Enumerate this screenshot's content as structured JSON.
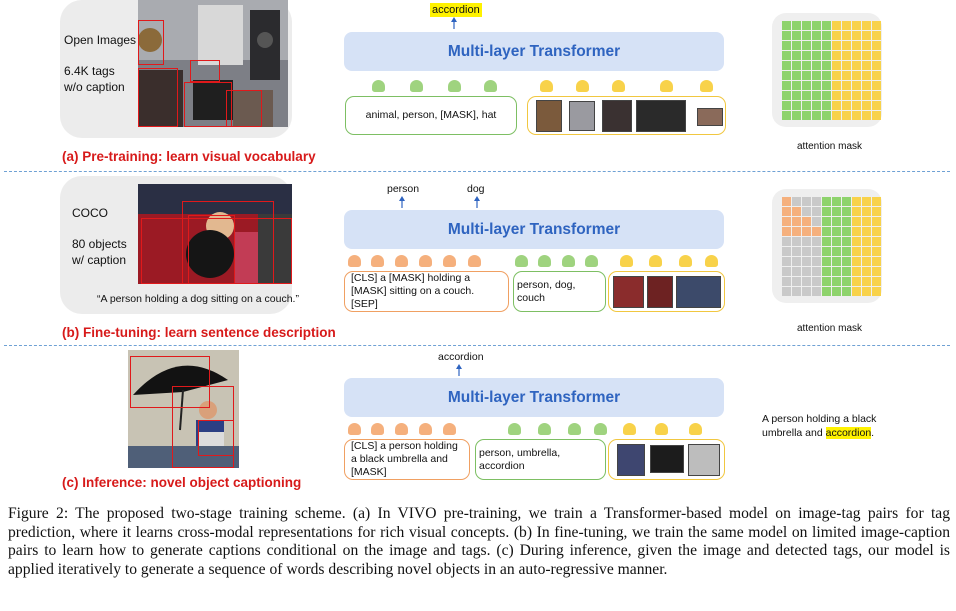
{
  "pretraining": {
    "dataset": "Open Images",
    "stats_line1": "6.4K tags",
    "stats_line2": "w/o caption",
    "title": "(a) Pre-training: learn visual vocabulary",
    "output_word": "accordion",
    "transformer_label": "Multi-layer Transformer",
    "tags_text": "animal, person, [MASK], hat",
    "mask_label": "attention mask"
  },
  "finetuning": {
    "dataset": "COCO",
    "stats_line1": "80 objects",
    "stats_line2": "w/ caption",
    "example_caption": "“A person holding a dog sitting on a couch.”",
    "title": "(b) Fine-tuning: learn sentence description",
    "output_word_1": "person",
    "output_word_2": "dog",
    "transformer_label": "Multi-layer Transformer",
    "caption_text": "[CLS] a [MASK] holding a [MASK] sitting on a couch. [SEP]",
    "tags_text": "person, dog, couch",
    "mask_label": "attention mask"
  },
  "inference": {
    "title": "(c) Inference: novel object captioning",
    "output_word": "accordion",
    "transformer_label": "Multi-layer Transformer",
    "caption_text": "[CLS] a person holding a black umbrella and [MASK]",
    "tags_text": "person, umbrella, accordion",
    "result_prefix": "A person holding a black umbrella and ",
    "result_highlight": "accordion",
    "result_suffix": "."
  },
  "figure_caption": "Figure 2: The proposed two-stage training scheme. (a) In VIVO pre-training, we train a Transformer-based model on image-tag pairs for tag prediction, where it learns cross-modal representations for rich visual concepts. (b) In fine-tuning, we train the same model on limited image-caption pairs to learn how to generate captions conditional on the image and tags. (c) During inference, given the image and detected tags, our model is applied iteratively to generate a sequence of words describing novel objects in an auto-regressive manner.",
  "colors": {
    "section_title": "#d71a1a",
    "transformer_fill": "#d6e2f6",
    "transformer_text": "#2f64c0",
    "token_green": "#9fd37f",
    "token_yellow": "#f8d24a",
    "token_orange": "#f5b07d",
    "mask_gray": "#c9c9c9",
    "divider": "#6fa1d4",
    "highlight": "#fff200"
  }
}
